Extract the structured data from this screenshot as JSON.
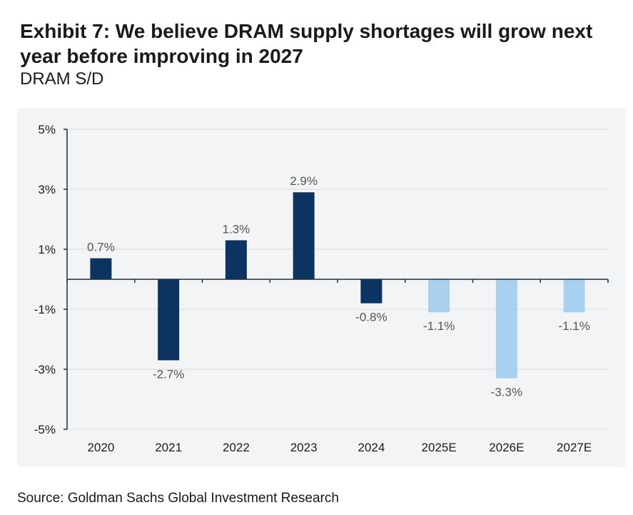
{
  "header": {
    "title": "Exhibit 7: We believe DRAM supply shortages will grow next year before improving in 2027",
    "subtitle": "DRAM S/D"
  },
  "footer": {
    "source": "Source: Goldman Sachs Global Investment Research"
  },
  "chart_data": {
    "type": "bar",
    "title": "Exhibit 7: We believe DRAM supply shortages will grow next year before improving in 2027",
    "subtitle": "DRAM S/D",
    "xlabel": "",
    "ylabel": "",
    "categories": [
      "2020",
      "2021",
      "2022",
      "2023",
      "2024",
      "2025E",
      "2026E",
      "2027E"
    ],
    "values": [
      0.7,
      -2.7,
      1.3,
      2.9,
      -0.8,
      -1.1,
      -3.3,
      -1.1
    ],
    "data_labels": [
      "0.7%",
      "-2.7%",
      "1.3%",
      "2.9%",
      "-0.8%",
      "-1.1%",
      "-3.3%",
      "-1.1%"
    ],
    "estimate": [
      false,
      false,
      false,
      false,
      false,
      true,
      true,
      true
    ],
    "ylim": [
      -5,
      5
    ],
    "yticks": [
      5,
      3,
      1,
      -1,
      -3,
      -5
    ],
    "ytick_labels": [
      "5%",
      "3%",
      "1%",
      "-1%",
      "-3%",
      "-5%"
    ],
    "grid": true,
    "colors": {
      "actual": "#0d3460",
      "estimate": "#a9d0ef",
      "grid": "#d9dadd",
      "axis": "#1f2d3d",
      "label": "#555555",
      "tick": "#1a1a1a"
    }
  }
}
